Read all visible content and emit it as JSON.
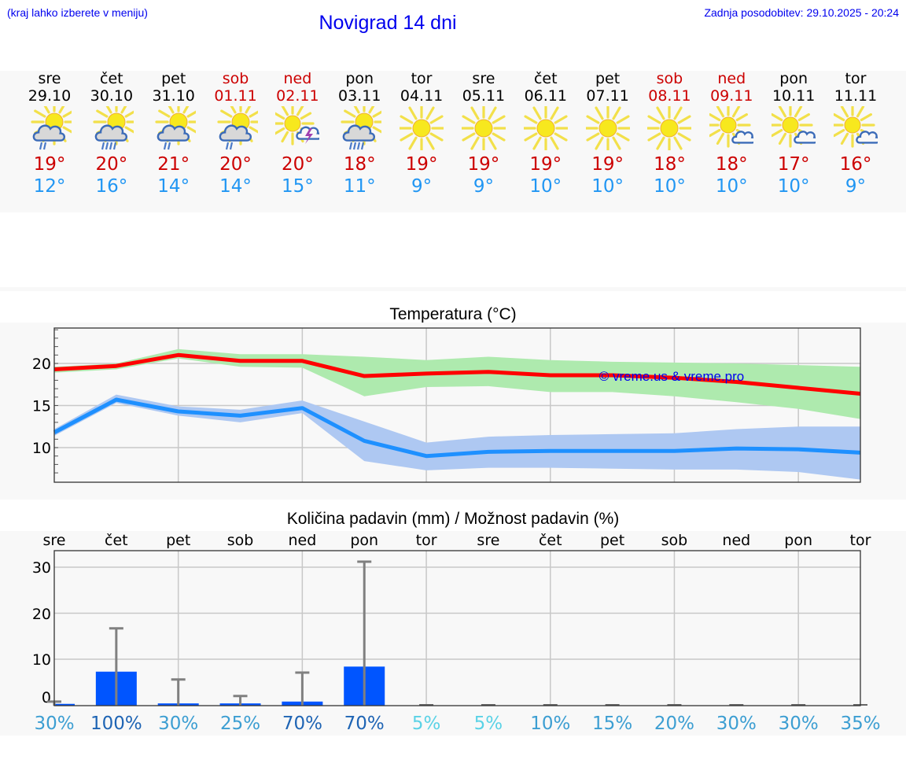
{
  "header": {
    "hint": "(kraj lahko izberete v meniju)",
    "title": "Novigrad 14 dni",
    "updated": "Zadnja posodobitev: 29.10.2025 - 20:24"
  },
  "colors": {
    "link_blue": "#0000ee",
    "weekend_red": "#cc0000",
    "tmax_red": "#ff0000",
    "tmin_blue": "#1e90ff",
    "tmax_band": "#aeeaae",
    "tmin_band": "#aec8f2",
    "precip_bar": "#0055ff",
    "errorbar": "#808080"
  },
  "days": [
    {
      "name": "sre",
      "date": "29.10",
      "weekend": false,
      "icon": "partly-cloudy-light-rain-icon",
      "tmax": "19°",
      "tmin": "12°"
    },
    {
      "name": "čet",
      "date": "30.10",
      "weekend": false,
      "icon": "partly-cloudy-rain-icon",
      "tmax": "20°",
      "tmin": "16°"
    },
    {
      "name": "pet",
      "date": "31.10",
      "weekend": false,
      "icon": "partly-cloudy-light-rain-icon",
      "tmax": "21°",
      "tmin": "14°"
    },
    {
      "name": "sob",
      "date": "01.11",
      "weekend": true,
      "icon": "partly-cloudy-light-rain-icon",
      "tmax": "20°",
      "tmin": "14°"
    },
    {
      "name": "ned",
      "date": "02.11",
      "weekend": true,
      "icon": "sun-thunderstorm-icon",
      "tmax": "20°",
      "tmin": "15°"
    },
    {
      "name": "pon",
      "date": "03.11",
      "weekend": false,
      "icon": "partly-cloudy-rain-icon",
      "tmax": "18°",
      "tmin": "11°"
    },
    {
      "name": "tor",
      "date": "04.11",
      "weekend": false,
      "icon": "sun-icon",
      "tmax": "19°",
      "tmin": "9°"
    },
    {
      "name": "sre",
      "date": "05.11",
      "weekend": false,
      "icon": "sun-icon",
      "tmax": "19°",
      "tmin": "9°"
    },
    {
      "name": "čet",
      "date": "06.11",
      "weekend": false,
      "icon": "sun-icon",
      "tmax": "19°",
      "tmin": "10°"
    },
    {
      "name": "pet",
      "date": "07.11",
      "weekend": false,
      "icon": "sun-icon",
      "tmax": "19°",
      "tmin": "10°"
    },
    {
      "name": "sob",
      "date": "08.11",
      "weekend": true,
      "icon": "sun-icon",
      "tmax": "18°",
      "tmin": "10°"
    },
    {
      "name": "ned",
      "date": "09.11",
      "weekend": true,
      "icon": "sun-small-cloud-icon",
      "tmax": "18°",
      "tmin": "10°"
    },
    {
      "name": "pon",
      "date": "10.11",
      "weekend": false,
      "icon": "sun-small-cloud-icon",
      "tmax": "17°",
      "tmin": "10°"
    },
    {
      "name": "tor",
      "date": "11.11",
      "weekend": false,
      "icon": "sun-small-cloud-icon",
      "tmax": "16°",
      "tmin": "9°"
    }
  ],
  "chart_data": [
    {
      "type": "line",
      "title": "Temperatura (°C)",
      "xlabel": "",
      "ylabel": "",
      "ylim": [
        5.9,
        24.3
      ],
      "yticks": [
        10,
        15,
        20
      ],
      "grid": true,
      "watermark": "© vreme.us & vreme.pro",
      "categories": [
        "29.10",
        "30.10",
        "31.10",
        "01.11",
        "02.11",
        "03.11",
        "04.11",
        "05.11",
        "06.11",
        "07.11",
        "08.11",
        "09.11",
        "10.11",
        "11.11"
      ],
      "series": [
        {
          "name": "Tmax",
          "color": "#ff0000",
          "values": [
            19.3,
            19.7,
            21.0,
            20.3,
            20.3,
            18.5,
            18.8,
            19.0,
            18.6,
            18.6,
            18.3,
            17.8,
            17.1,
            16.4
          ]
        },
        {
          "name": "Tmax range low",
          "values": [
            18.9,
            19.3,
            20.6,
            19.6,
            19.5,
            16.1,
            17.2,
            17.3,
            16.6,
            16.6,
            16.1,
            15.4,
            14.6,
            13.4
          ]
        },
        {
          "name": "Tmax range high",
          "values": [
            19.6,
            20.0,
            21.7,
            21.1,
            21.1,
            20.8,
            20.4,
            20.8,
            20.4,
            20.2,
            20.1,
            20.0,
            19.8,
            19.6
          ]
        },
        {
          "name": "Tmin",
          "color": "#1e90ff",
          "values": [
            11.8,
            15.7,
            14.3,
            13.8,
            14.7,
            10.8,
            9.0,
            9.5,
            9.6,
            9.6,
            9.6,
            9.9,
            9.8,
            9.4
          ]
        },
        {
          "name": "Tmin range low",
          "values": [
            11.4,
            15.3,
            13.8,
            13.0,
            14.1,
            8.4,
            7.3,
            7.6,
            7.6,
            7.5,
            7.4,
            7.4,
            7.1,
            6.2
          ]
        },
        {
          "name": "Tmin range high",
          "values": [
            12.2,
            16.3,
            14.9,
            14.5,
            15.6,
            13.1,
            10.6,
            11.3,
            11.5,
            11.6,
            11.7,
            12.2,
            12.5,
            12.5
          ]
        }
      ]
    },
    {
      "type": "bar",
      "title": "Količina padavin (mm) / Možnost padavin (%)",
      "xlabel": "",
      "ylabel": "",
      "ylim": [
        0,
        33.5
      ],
      "yticks": [
        0,
        10,
        20,
        30
      ],
      "grid": true,
      "categories": [
        "sre",
        "čet",
        "pet",
        "sob",
        "ned",
        "pon",
        "tor",
        "sre",
        "čet",
        "pet",
        "sob",
        "ned",
        "pon",
        "tor"
      ],
      "series": [
        {
          "name": "Količina padavin (mm)",
          "values": [
            0.3,
            7.3,
            0.4,
            0.4,
            0.8,
            8.4,
            0,
            0,
            0,
            0,
            0,
            0,
            0,
            0
          ]
        },
        {
          "name": "Zgornja meja (mm)",
          "values": [
            0.8,
            16.7,
            5.6,
            2.0,
            7.1,
            31.2,
            0,
            0,
            0,
            0,
            0,
            0,
            0,
            0
          ]
        },
        {
          "name": "Možnost padavin (%)",
          "values": [
            30,
            100,
            30,
            25,
            70,
            70,
            5,
            5,
            10,
            15,
            20,
            30,
            30,
            35
          ]
        }
      ],
      "probability_labels": [
        "30%",
        "100%",
        "30%",
        "25%",
        "70%",
        "70%",
        "5%",
        "5%",
        "10%",
        "15%",
        "20%",
        "30%",
        "30%",
        "35%"
      ]
    }
  ]
}
